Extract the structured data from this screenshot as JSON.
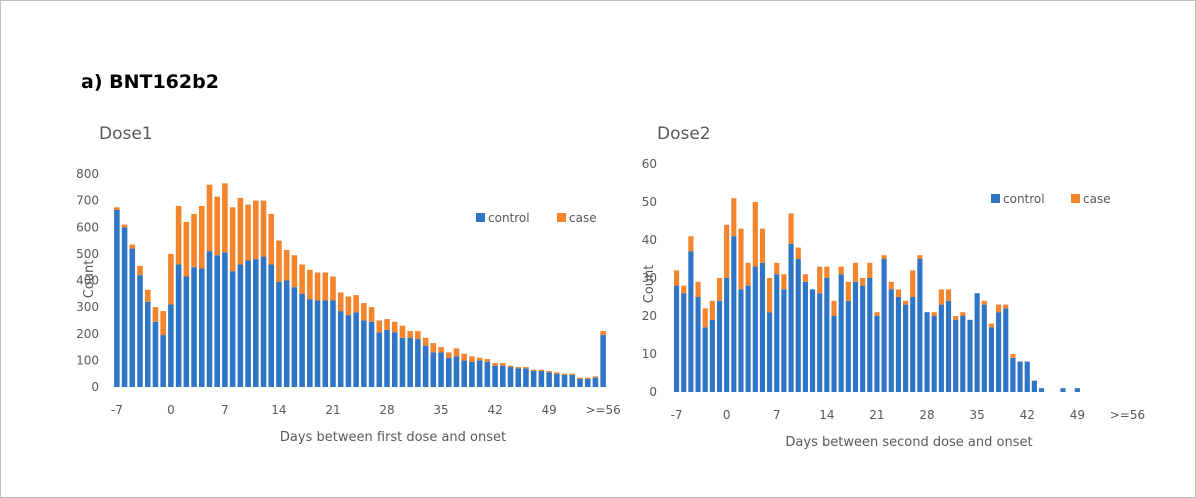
{
  "figure": {
    "panel_label": "a) BNT162b2"
  },
  "colors": {
    "control": "#2e75c6",
    "case": "#f4852d"
  },
  "chart_data": [
    {
      "type": "bar",
      "stacked": true,
      "title": "Dose1",
      "xlabel": "Days between first dose and onset",
      "ylabel": "Count",
      "ylim": [
        0,
        800
      ],
      "yticks": [
        0,
        100,
        200,
        300,
        400,
        500,
        600,
        700,
        800
      ],
      "xticks": [
        {
          "day": -7,
          "label": "-7"
        },
        {
          "day": 0,
          "label": "0"
        },
        {
          "day": 7,
          "label": "7"
        },
        {
          "day": 14,
          "label": "14"
        },
        {
          "day": 21,
          "label": "21"
        },
        {
          "day": 28,
          "label": "28"
        },
        {
          "day": 35,
          "label": "35"
        },
        {
          "day": 42,
          "label": "42"
        },
        {
          "day": 49,
          "label": "49"
        },
        {
          "day": 56,
          "label": ">=56"
        }
      ],
      "legend": "top-right",
      "grid": false,
      "x": [
        -7,
        -6,
        -5,
        -4,
        -3,
        -2,
        -1,
        0,
        1,
        2,
        3,
        4,
        5,
        6,
        7,
        8,
        9,
        10,
        11,
        12,
        13,
        14,
        15,
        16,
        17,
        18,
        19,
        20,
        21,
        22,
        23,
        24,
        25,
        26,
        27,
        28,
        29,
        30,
        31,
        32,
        33,
        34,
        35,
        36,
        37,
        38,
        39,
        40,
        41,
        42,
        43,
        44,
        45,
        46,
        47,
        48,
        49,
        50,
        51,
        52,
        53,
        54,
        55,
        56
      ],
      "series": [
        {
          "name": "control",
          "color_key": "control",
          "values": [
            665,
            600,
            520,
            420,
            320,
            245,
            195,
            310,
            460,
            415,
            450,
            445,
            510,
            495,
            505,
            435,
            460,
            475,
            480,
            490,
            460,
            395,
            400,
            375,
            350,
            330,
            325,
            325,
            325,
            285,
            270,
            280,
            250,
            245,
            205,
            215,
            205,
            185,
            185,
            180,
            155,
            130,
            130,
            110,
            115,
            100,
            95,
            100,
            95,
            80,
            80,
            75,
            70,
            70,
            60,
            60,
            55,
            50,
            45,
            45,
            30,
            30,
            35,
            195
          ]
        },
        {
          "name": "case",
          "color_key": "case",
          "values": [
            10,
            10,
            15,
            35,
            45,
            55,
            90,
            190,
            220,
            205,
            200,
            235,
            250,
            220,
            260,
            240,
            250,
            210,
            220,
            210,
            190,
            155,
            115,
            120,
            110,
            110,
            105,
            105,
            90,
            70,
            70,
            65,
            65,
            55,
            45,
            40,
            40,
            45,
            25,
            30,
            30,
            35,
            20,
            20,
            30,
            25,
            20,
            10,
            10,
            10,
            10,
            5,
            5,
            5,
            5,
            5,
            5,
            5,
            5,
            5,
            5,
            5,
            5,
            15
          ]
        }
      ]
    },
    {
      "type": "bar",
      "stacked": true,
      "title": "Dose2",
      "xlabel": "Days between second dose and onset",
      "ylabel": "Count",
      "ylim": [
        0,
        60
      ],
      "yticks": [
        0,
        10,
        20,
        30,
        40,
        50,
        60
      ],
      "xticks": [
        {
          "day": -7,
          "label": "-7"
        },
        {
          "day": 0,
          "label": "0"
        },
        {
          "day": 7,
          "label": "7"
        },
        {
          "day": 14,
          "label": "14"
        },
        {
          "day": 21,
          "label": "21"
        },
        {
          "day": 28,
          "label": "28"
        },
        {
          "day": 35,
          "label": "35"
        },
        {
          "day": 42,
          "label": "42"
        },
        {
          "day": 49,
          "label": "49"
        },
        {
          "day": 56,
          "label": ">=56"
        }
      ],
      "legend": "top-right",
      "grid": false,
      "x": [
        -7,
        -6,
        -5,
        -4,
        -3,
        -2,
        -1,
        0,
        1,
        2,
        3,
        4,
        5,
        6,
        7,
        8,
        9,
        10,
        11,
        12,
        13,
        14,
        15,
        16,
        17,
        18,
        19,
        20,
        21,
        22,
        23,
        24,
        25,
        26,
        27,
        28,
        29,
        30,
        31,
        32,
        33,
        34,
        35,
        36,
        37,
        38,
        39,
        40,
        41,
        42,
        43,
        44,
        45,
        46,
        47,
        48,
        49,
        50,
        51,
        52,
        53,
        54,
        55,
        56
      ],
      "series": [
        {
          "name": "control",
          "color_key": "control",
          "values": [
            28,
            26,
            37,
            25,
            17,
            19,
            24,
            30,
            41,
            27,
            28,
            33,
            34,
            21,
            31,
            27,
            39,
            35,
            29,
            27,
            26,
            30,
            20,
            31,
            24,
            29,
            28,
            30,
            20,
            35,
            27,
            25,
            23,
            25,
            35,
            21,
            20,
            23,
            24,
            19,
            20,
            19,
            26,
            23,
            17,
            21,
            22,
            9,
            8,
            8,
            3,
            1,
            0,
            0,
            1,
            0,
            1,
            0,
            0,
            0,
            0,
            0,
            0,
            0
          ]
        },
        {
          "name": "case",
          "color_key": "case",
          "values": [
            4,
            2,
            4,
            4,
            5,
            5,
            6,
            14,
            10,
            16,
            6,
            17,
            9,
            9,
            3,
            4,
            8,
            3,
            2,
            0,
            7,
            3,
            4,
            2,
            5,
            5,
            2,
            4,
            1,
            1,
            2,
            2,
            1,
            7,
            1,
            0,
            1,
            4,
            3,
            1,
            1,
            0,
            0,
            1,
            1,
            2,
            1,
            1,
            0,
            0,
            0,
            0,
            0,
            0,
            0,
            0,
            0,
            0,
            0,
            0,
            0,
            0,
            0,
            0
          ]
        }
      ]
    }
  ]
}
